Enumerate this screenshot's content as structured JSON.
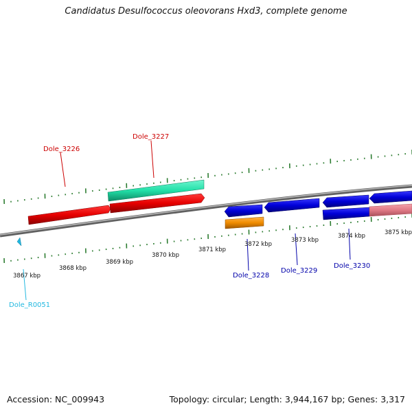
{
  "title": "Candidatus Desulfococcus oleovorans Hxd3, complete genome",
  "footer": {
    "accession": "Accession: NC_009943",
    "summary": "Topology: circular; Length: 3,944,167 bp; Genes: 3,317"
  },
  "colors": {
    "forward_red": "#e60000",
    "cyan_green": "#22e0a8",
    "blue": "#0000d8",
    "orange": "#f08c00",
    "pink": "#e07a86",
    "tick_green": "#2e7d32",
    "backbone_gray": "#8c8c8c",
    "label_red": "#cc0000",
    "label_blue": "#0000aa",
    "label_cyan": "#22b8e0"
  },
  "scale": {
    "unit": "kbp",
    "tick_labels": [
      "3867 kbp",
      "3868 kbp",
      "3869 kbp",
      "3870 kbp",
      "3871 kbp",
      "3872 kbp",
      "3873 kbp",
      "3874 kbp",
      "3875 kbp"
    ]
  },
  "genes": [
    {
      "label": "Dole_3226",
      "strand": "forward",
      "color": "red"
    },
    {
      "label": "Dole_3227",
      "strand": "forward",
      "color": "cyan-green"
    },
    {
      "label": "Dole_3228",
      "strand": "reverse",
      "color": "blue"
    },
    {
      "label": "Dole_3229",
      "strand": "reverse",
      "color": "blue"
    },
    {
      "label": "Dole_3230",
      "strand": "reverse",
      "color": "blue"
    },
    {
      "label": "Dole_R0051",
      "strand": "reverse",
      "color": "cyan"
    }
  ]
}
